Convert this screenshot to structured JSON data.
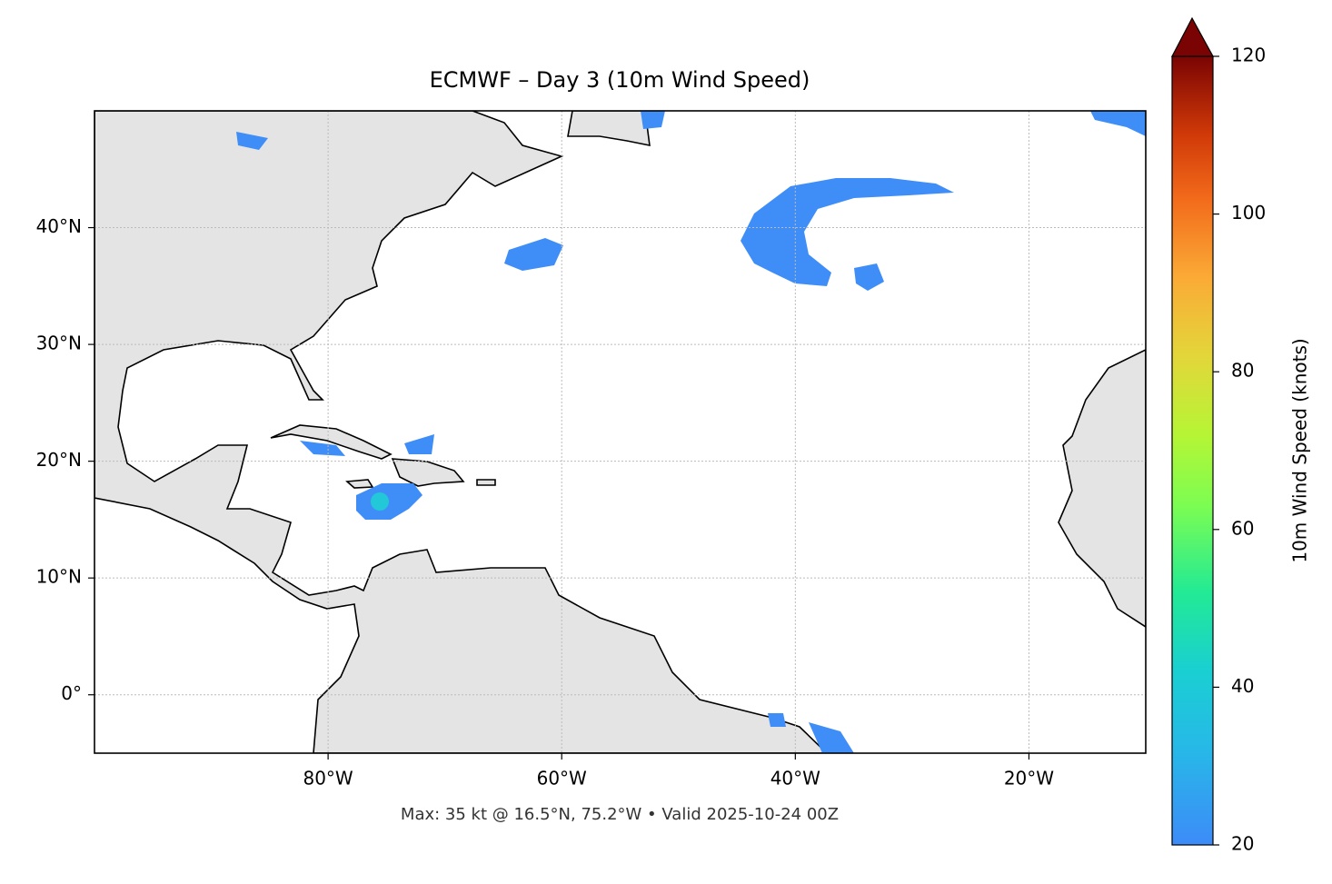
{
  "chart_data": {
    "type": "map",
    "title": "ECMWF – Day 3 (10m Wind Speed)",
    "caption": "Max: 35 kt @ 16.5°N, 75.2°W • Valid 2025-10-24 00Z",
    "xlim": [
      -100,
      -10
    ],
    "ylim": [
      -5,
      50
    ],
    "xticks": [
      {
        "value": -80,
        "label": "80°W"
      },
      {
        "value": -60,
        "label": "60°W"
      },
      {
        "value": -40,
        "label": "40°W"
      },
      {
        "value": -20,
        "label": "20°W"
      }
    ],
    "yticks": [
      {
        "value": 0,
        "label": "0°"
      },
      {
        "value": 10,
        "label": "10°N"
      },
      {
        "value": 20,
        "label": "20°N"
      },
      {
        "value": 30,
        "label": "30°N"
      },
      {
        "value": 40,
        "label": "40°N"
      }
    ],
    "grid": true,
    "colorbar": {
      "label": "10m Wind Speed (knots)",
      "lim": [
        20,
        120
      ],
      "ticks": [
        20,
        40,
        60,
        80,
        100,
        120
      ],
      "extend": "max"
    }
  }
}
